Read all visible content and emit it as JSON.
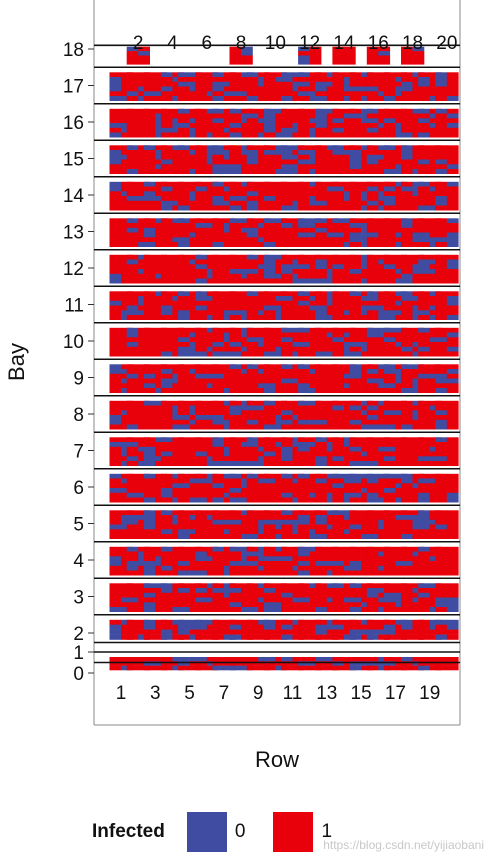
{
  "chart_data": {
    "type": "heatmap",
    "title": "",
    "xlabel": "Row",
    "ylabel": "Bay",
    "x_ticks_bottom": [
      "1",
      "3",
      "5",
      "7",
      "9",
      "11",
      "13",
      "15",
      "17",
      "19"
    ],
    "x_ticks_top": [
      "2",
      "4",
      "6",
      "8",
      "10",
      "12",
      "14",
      "16",
      "18",
      "20"
    ],
    "y_ticks": [
      "0",
      "1",
      "2",
      "3",
      "4",
      "5",
      "6",
      "7",
      "8",
      "9",
      "10",
      "11",
      "12",
      "13",
      "14",
      "15",
      "16",
      "17",
      "18"
    ],
    "rows": [
      1,
      2,
      3,
      4,
      5,
      6,
      7,
      8,
      9,
      10,
      11,
      12,
      13,
      14,
      15,
      16,
      17,
      18,
      19,
      20
    ],
    "bays": [
      0,
      1,
      2,
      3,
      4,
      5,
      6,
      7,
      8,
      9,
      10,
      11,
      12,
      13,
      14,
      15,
      16,
      17,
      18
    ],
    "legend": {
      "title": "Infected",
      "items": [
        {
          "label": "0",
          "color": "#3f4ca1"
        },
        {
          "label": "1",
          "color": "#e8000b"
        }
      ]
    },
    "legend_position": "bottom",
    "grid": false
  },
  "watermark": "https://blog.csdn.net/yijiaobani"
}
